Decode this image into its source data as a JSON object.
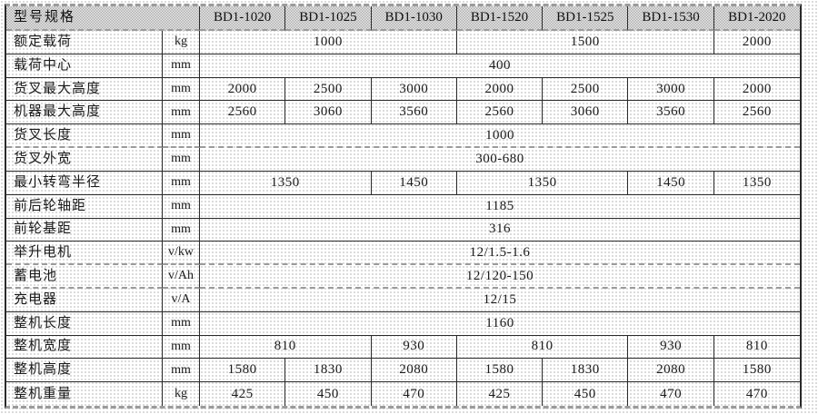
{
  "colors": {
    "border_line": "#2a2a2a",
    "dashed_line": "#9b9b9b",
    "header_dither_dark": "#aeaeae",
    "header_dither_light": "#e9e9e9",
    "text": "#1a1a1a"
  },
  "table": {
    "corner_label": "型号规格",
    "models": [
      "BD1-1020",
      "BD1-1025",
      "BD1-1030",
      "BD1-1520",
      "BD1-1525",
      "BD1-1530",
      "BD1-2020"
    ],
    "rows": [
      {
        "label": "额定载荷",
        "unit": "kg",
        "dashed": false,
        "cells": [
          {
            "text": "1000",
            "span": 3
          },
          {
            "text": "1500",
            "span": 3
          },
          {
            "text": "2000",
            "span": 1
          }
        ]
      },
      {
        "label": "载荷中心",
        "unit": "mm",
        "dashed": false,
        "cells": [
          {
            "text": "400",
            "span": 7
          }
        ]
      },
      {
        "label": "货叉最大高度",
        "unit": "mm",
        "dashed": false,
        "cells": [
          {
            "text": "2000",
            "span": 1
          },
          {
            "text": "2500",
            "span": 1
          },
          {
            "text": "3000",
            "span": 1
          },
          {
            "text": "2000",
            "span": 1
          },
          {
            "text": "2500",
            "span": 1
          },
          {
            "text": "3000",
            "span": 1
          },
          {
            "text": "2000",
            "span": 1
          }
        ]
      },
      {
        "label": "机器最大高度",
        "unit": "mm",
        "dashed": false,
        "cells": [
          {
            "text": "2560",
            "span": 1
          },
          {
            "text": "3060",
            "span": 1
          },
          {
            "text": "3560",
            "span": 1
          },
          {
            "text": "2560",
            "span": 1
          },
          {
            "text": "3060",
            "span": 1
          },
          {
            "text": "3560",
            "span": 1
          },
          {
            "text": "2560",
            "span": 1
          }
        ]
      },
      {
        "label": "货叉长度",
        "unit": "mm",
        "dashed": true,
        "cells": [
          {
            "text": "1000",
            "span": 7
          }
        ]
      },
      {
        "label": "货叉外宽",
        "unit": "mm",
        "dashed": false,
        "cells": [
          {
            "text": "300-680",
            "span": 7
          }
        ]
      },
      {
        "label": "最小转弯半径",
        "unit": "mm",
        "dashed": false,
        "cells": [
          {
            "text": "1350",
            "span": 2
          },
          {
            "text": "1450",
            "span": 1
          },
          {
            "text": "1350",
            "span": 2
          },
          {
            "text": "1450",
            "span": 1
          },
          {
            "text": "1350",
            "span": 1
          }
        ]
      },
      {
        "label": "前后轮轴距",
        "unit": "mm",
        "dashed": false,
        "cells": [
          {
            "text": "1185",
            "span": 7
          }
        ]
      },
      {
        "label": "前轮基距",
        "unit": "mm",
        "dashed": false,
        "cells": [
          {
            "text": "316",
            "span": 7
          }
        ]
      },
      {
        "label": "举升电机",
        "unit": "v/kw",
        "dashed": true,
        "cells": [
          {
            "text": "12/1.5-1.6",
            "span": 7
          }
        ]
      },
      {
        "label": "蓄电池",
        "unit": "v/Ah",
        "dashed": true,
        "cells": [
          {
            "text": "12/120-150",
            "span": 7
          }
        ]
      },
      {
        "label": "充电器",
        "unit": "v/A",
        "dashed": false,
        "cells": [
          {
            "text": "12/15",
            "span": 7
          }
        ]
      },
      {
        "label": "整机长度",
        "unit": "mm",
        "dashed": false,
        "cells": [
          {
            "text": "1160",
            "span": 7
          }
        ]
      },
      {
        "label": "整机宽度",
        "unit": "mm",
        "dashed": false,
        "cells": [
          {
            "text": "810",
            "span": 2
          },
          {
            "text": "930",
            "span": 1
          },
          {
            "text": "810",
            "span": 2
          },
          {
            "text": "930",
            "span": 1
          },
          {
            "text": "810",
            "span": 1
          }
        ]
      },
      {
        "label": "整机高度",
        "unit": "mm",
        "dashed": false,
        "cells": [
          {
            "text": "1580",
            "span": 1
          },
          {
            "text": "1830",
            "span": 1
          },
          {
            "text": "2080",
            "span": 1
          },
          {
            "text": "1580",
            "span": 1
          },
          {
            "text": "1830",
            "span": 1
          },
          {
            "text": "2080",
            "span": 1
          },
          {
            "text": "1580",
            "span": 1
          }
        ]
      },
      {
        "label": "整机重量",
        "unit": "kg",
        "dashed": true,
        "cells": [
          {
            "text": "425",
            "span": 1
          },
          {
            "text": "450",
            "span": 1
          },
          {
            "text": "470",
            "span": 1
          },
          {
            "text": "425",
            "span": 1
          },
          {
            "text": "450",
            "span": 1
          },
          {
            "text": "470",
            "span": 1
          },
          {
            "text": "470",
            "span": 1
          }
        ]
      }
    ]
  }
}
